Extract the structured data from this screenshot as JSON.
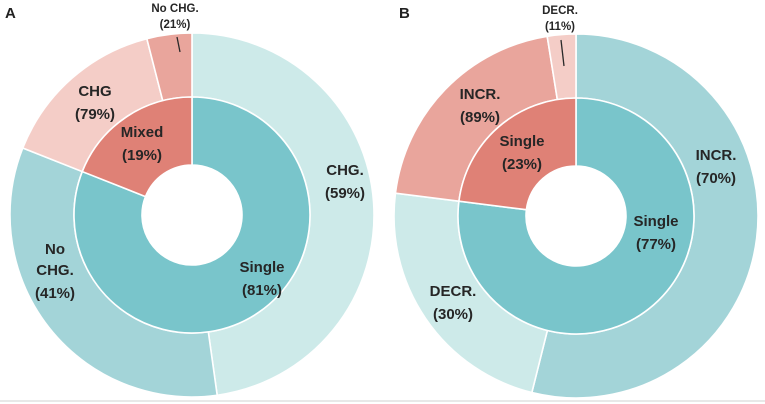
{
  "chart_data": [
    {
      "panel": "A",
      "type": "pie",
      "subtype": "nested-donut",
      "inner_ring": [
        {
          "label": "Single",
          "percent": "(81%)",
          "value": 81,
          "color": "#79c5cb"
        },
        {
          "label": "Mixed",
          "percent": "(19%)",
          "value": 19,
          "color": "#df8176"
        }
      ],
      "outer_ring": [
        {
          "label": "CHG.",
          "percent": "(59%)",
          "value": 59,
          "parent": "Single",
          "color": "#cdeae9"
        },
        {
          "label": "No CHG.",
          "percent": "(41%)",
          "value": 41,
          "parent": "Single",
          "color": "#a3d4d8"
        },
        {
          "label": "CHG",
          "percent": "(79%)",
          "value": 79,
          "parent": "Mixed",
          "color": "#f4cdc7"
        },
        {
          "label": "No CHG.",
          "percent": "(21%)",
          "value": 21,
          "parent": "Mixed",
          "color": "#e9a59c"
        }
      ]
    },
    {
      "panel": "B",
      "type": "pie",
      "subtype": "nested-donut",
      "inner_ring": [
        {
          "label": "Single",
          "percent": "(77%)",
          "value": 77,
          "color": "#79c5cb"
        },
        {
          "label": "Single",
          "percent": "(23%)",
          "value": 23,
          "color": "#df8176"
        }
      ],
      "outer_ring": [
        {
          "label": "INCR.",
          "percent": "(70%)",
          "value": 70,
          "parent": "Single",
          "color": "#a3d4d8"
        },
        {
          "label": "DECR.",
          "percent": "(30%)",
          "value": 30,
          "parent": "Single",
          "color": "#cdeae9"
        },
        {
          "label": "INCR.",
          "percent": "(89%)",
          "value": 89,
          "parent": "Single",
          "color": "#e9a59c"
        },
        {
          "label": "DECR.",
          "percent": "(11%)",
          "value": 11,
          "parent": "Single",
          "color": "#f4cdc7"
        }
      ]
    }
  ]
}
